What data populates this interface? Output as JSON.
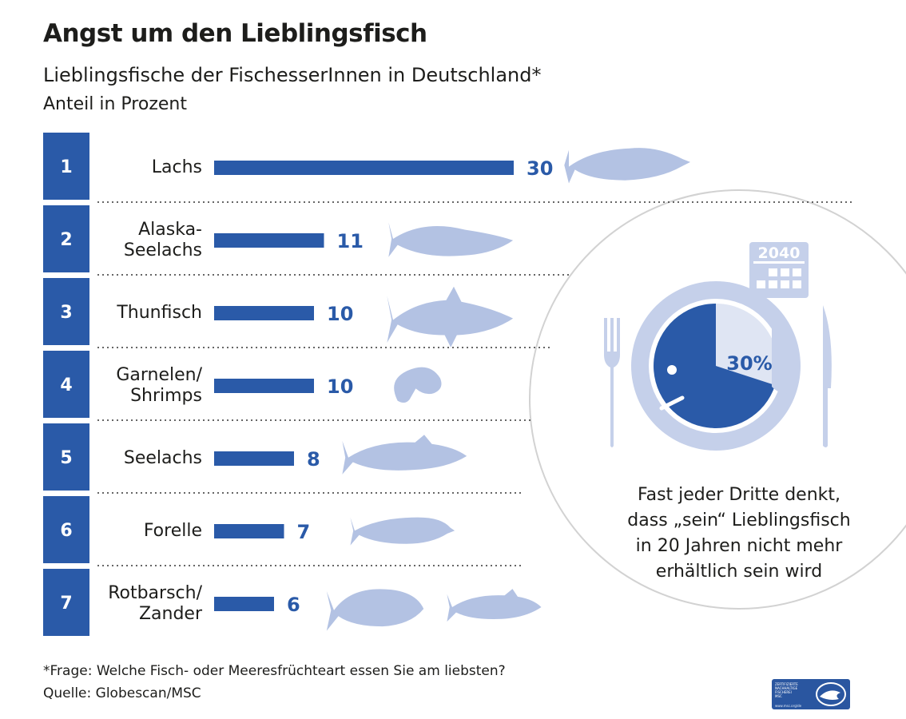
{
  "title": "Angst um den Lieblingsfisch",
  "subtitle": "Lieblingsfische der FischesserInnen in Deutschland*",
  "unit": "Anteil in Prozent",
  "colors": {
    "bar": "#2a5aa8",
    "rank_box": "#2a5aa8",
    "fish": "#b3c2e3",
    "plate": "#c5d0ea",
    "value_text": "#2a5aa8"
  },
  "chart_data": {
    "type": "bar",
    "orientation": "horizontal",
    "title": "Lieblingsfische der FischesserInnen in Deutschland*",
    "unit": "Anteil in Prozent",
    "ranks": [
      "1",
      "2",
      "3",
      "4",
      "5",
      "6",
      "7"
    ],
    "categories": [
      [
        "Lachs"
      ],
      [
        "Alaska-",
        "Seelachs"
      ],
      [
        "Thunfisch"
      ],
      [
        "Garnelen/",
        "Shrimps"
      ],
      [
        "Seelachs"
      ],
      [
        "Forelle"
      ],
      [
        "Rotbarsch/",
        "Zander"
      ]
    ],
    "values": [
      30,
      11,
      10,
      10,
      8,
      7,
      6
    ],
    "value_labels": [
      "30",
      "11",
      "10",
      "10",
      "8",
      "7",
      "6"
    ],
    "fish_icons": [
      "salmon-icon",
      "pollock-icon",
      "tuna-icon",
      "shrimp-icon",
      "saithe-icon",
      "trout-icon",
      "redfish-icon"
    ]
  },
  "info_graphic": {
    "year_label": "2040",
    "percent_label": "30%",
    "share": 30,
    "text_lines": [
      "Fast jeder Dritte denkt,",
      "dass „sein“ Lieblingsfisch",
      "in 20 Jahren nicht mehr",
      "erhältlich sein wird"
    ]
  },
  "footnote": {
    "question": "*Frage: Welche Fisch- oder Meeresfrüchteart essen Sie am liebsten?",
    "source": "Quelle: Globescan/MSC"
  },
  "logo": {
    "name": "msc-logo",
    "text_lines": [
      "ZERTIFIZIERTE",
      "NACHHALTIGE",
      "FISCHEREI",
      "MSC"
    ],
    "url": "www.msc.org/de"
  }
}
